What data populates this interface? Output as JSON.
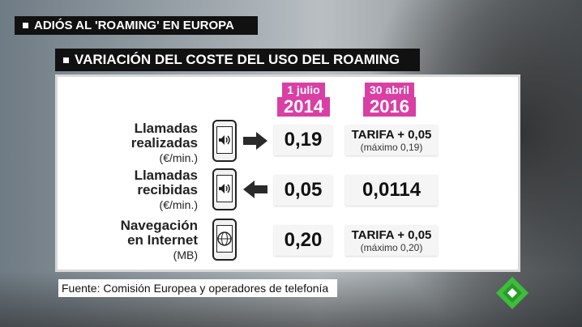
{
  "header": {
    "tag": "ADIÓS AL 'ROAMING' EN EUROPA"
  },
  "graphic": {
    "title": "VARIACIÓN DEL COSTE DEL USO DEL ROAMING",
    "columns": [
      {
        "line1": "1 julio",
        "line2": "2014"
      },
      {
        "line1": "30 abril",
        "line2": "2016"
      }
    ],
    "rows": [
      {
        "label1": "Llamadas",
        "label2": "realizadas",
        "unit": "(€/min.)",
        "icon": "phone-sound-icon",
        "arrow": "arrow-right-icon",
        "value_2014": "0,19",
        "value_2016_main": "TARIFA + 0,05",
        "value_2016_note": "(máximo 0,19)"
      },
      {
        "label1": "Llamadas",
        "label2": "recibidas",
        "unit": "(€/min.)",
        "icon": "phone-sound-icon",
        "arrow": "arrow-left-icon",
        "value_2014": "0,05",
        "value_2016_main": "0,0114",
        "value_2016_note": ""
      },
      {
        "label1": "Navegación",
        "label2": "en Internet",
        "unit": "(MB)",
        "icon": "phone-www-icon",
        "arrow": "",
        "value_2014": "0,20",
        "value_2016_main": "TARIFA + 0,05",
        "value_2016_note": "(máximo 0,20)"
      }
    ]
  },
  "source": "Fuente: Comisión Europea y operadores de telefonía",
  "colors": {
    "accent": "#d93fa5",
    "logo_green": "#3cbd3c"
  }
}
